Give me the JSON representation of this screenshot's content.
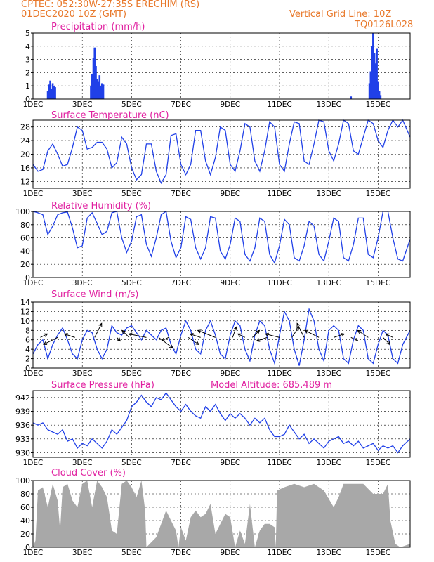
{
  "header": {
    "station": "CPTEC:   052:30W-27:35S   ERECHIM (RS)",
    "run": "01DEC2020 10Z (GMT)",
    "grid": "Vertical Grid Line: 10Z",
    "model": "TQ0126L028",
    "altitude": "Model Altitude: 685.489 m"
  },
  "colors": {
    "header": "#e8782a",
    "title": "#e020a0",
    "line": "#2040e8",
    "cloud": "#a8a8a8"
  },
  "x_ticks": [
    "1DEC",
    "3DEC",
    "5DEC",
    "7DEC",
    "9DEC",
    "11DEC",
    "13DEC",
    "15DEC"
  ],
  "chart_data": [
    {
      "id": "precip",
      "type": "bar",
      "title": "Precipitation (mm/h)",
      "ylim": [
        0,
        5
      ],
      "yticks": [
        0,
        1,
        2,
        3,
        4,
        5
      ],
      "x_unit": "day of December (1 = 01DEC)",
      "xlim": [
        1,
        16.3
      ],
      "x": [
        1.6,
        1.65,
        1.7,
        1.75,
        1.8,
        1.85,
        1.9,
        3.35,
        3.4,
        3.45,
        3.5,
        3.55,
        3.6,
        3.65,
        3.7,
        3.75,
        3.8,
        3.85,
        13.9,
        14.65,
        14.7,
        14.75,
        14.8,
        14.85,
        14.9,
        14.95,
        15.0,
        15.05,
        15.1
      ],
      "values": [
        0.6,
        1.1,
        1.4,
        0.8,
        1.2,
        1.0,
        0.9,
        1.0,
        1.9,
        3.1,
        3.9,
        2.5,
        1.5,
        1.3,
        1.8,
        1.0,
        1.2,
        1.1,
        0.2,
        1.2,
        2.1,
        4.0,
        5.0,
        3.5,
        2.7,
        3.8,
        1.3,
        0.6,
        0.3
      ]
    },
    {
      "id": "temp",
      "type": "line",
      "title": "Surface Temperature (nC)",
      "ylim": [
        10,
        30
      ],
      "yticks": [
        12,
        16,
        20,
        24,
        28
      ],
      "xlim": [
        1,
        16.3
      ],
      "x": [
        1,
        1.2,
        1.4,
        1.6,
        1.8,
        2.0,
        2.2,
        2.4,
        2.6,
        2.8,
        3.0,
        3.2,
        3.4,
        3.6,
        3.8,
        4.0,
        4.2,
        4.4,
        4.6,
        4.8,
        5.0,
        5.2,
        5.4,
        5.6,
        5.8,
        6.0,
        6.2,
        6.4,
        6.6,
        6.8,
        7.0,
        7.2,
        7.4,
        7.6,
        7.8,
        8.0,
        8.2,
        8.4,
        8.6,
        8.8,
        9.0,
        9.2,
        9.4,
        9.6,
        9.8,
        10.0,
        10.2,
        10.4,
        10.6,
        10.8,
        11.0,
        11.2,
        11.4,
        11.6,
        11.8,
        12.0,
        12.2,
        12.4,
        12.6,
        12.8,
        13.0,
        13.2,
        13.4,
        13.6,
        13.8,
        14.0,
        14.2,
        14.4,
        14.6,
        14.8,
        15.0,
        15.2,
        15.4,
        15.6,
        15.8,
        16.0,
        16.3
      ],
      "values": [
        17,
        15,
        15.5,
        21,
        23,
        20,
        16.5,
        17,
        22,
        28,
        27,
        21.5,
        22,
        23.5,
        23.5,
        21.5,
        16,
        17.5,
        25,
        23,
        16,
        12.5,
        14,
        23,
        23,
        15,
        11.5,
        14,
        25.5,
        26,
        17,
        14,
        17,
        27,
        27,
        18,
        14,
        19,
        28,
        27,
        17,
        15,
        21,
        29,
        28,
        18,
        15,
        21,
        29.5,
        28,
        17,
        15,
        23,
        29.5,
        29,
        18,
        17,
        23,
        30,
        29.5,
        21,
        18,
        23,
        30,
        29,
        21,
        20,
        25,
        30,
        29,
        24,
        22,
        27,
        30,
        28,
        30,
        25
      ]
    },
    {
      "id": "rh",
      "type": "line",
      "title": "Relative Humidity (%)",
      "ylim": [
        0,
        100
      ],
      "yticks": [
        0,
        20,
        40,
        60,
        80,
        100
      ],
      "xlim": [
        1,
        16.3
      ],
      "x": [
        1,
        1.2,
        1.4,
        1.6,
        1.8,
        2.0,
        2.2,
        2.4,
        2.6,
        2.8,
        3.0,
        3.2,
        3.4,
        3.6,
        3.8,
        4.0,
        4.2,
        4.4,
        4.6,
        4.8,
        5.0,
        5.2,
        5.4,
        5.6,
        5.8,
        6.0,
        6.2,
        6.4,
        6.6,
        6.8,
        7.0,
        7.2,
        7.4,
        7.6,
        7.8,
        8.0,
        8.2,
        8.4,
        8.6,
        8.8,
        9.0,
        9.2,
        9.4,
        9.6,
        9.8,
        10.0,
        10.2,
        10.4,
        10.6,
        10.8,
        11.0,
        11.2,
        11.4,
        11.6,
        11.8,
        12.0,
        12.2,
        12.4,
        12.6,
        12.8,
        13.0,
        13.2,
        13.4,
        13.6,
        13.8,
        14.0,
        14.2,
        14.4,
        14.6,
        14.8,
        15.0,
        15.2,
        15.4,
        15.6,
        15.8,
        16.0,
        16.3
      ],
      "values": [
        100,
        98,
        95,
        65,
        78,
        95,
        98,
        99,
        75,
        45,
        48,
        90,
        98,
        82,
        65,
        70,
        98,
        100,
        60,
        38,
        55,
        92,
        95,
        50,
        32,
        60,
        95,
        100,
        55,
        30,
        45,
        92,
        88,
        45,
        28,
        45,
        92,
        90,
        40,
        28,
        50,
        90,
        85,
        35,
        25,
        45,
        90,
        85,
        35,
        22,
        48,
        88,
        80,
        30,
        25,
        48,
        85,
        78,
        35,
        25,
        55,
        90,
        85,
        30,
        25,
        50,
        90,
        90,
        35,
        30,
        60,
        100,
        100,
        60,
        28,
        25,
        58
      ]
    },
    {
      "id": "wind",
      "type": "line",
      "title": "Surface Wind (m/s)",
      "ylim": [
        0,
        14
      ],
      "yticks": [
        0,
        2,
        4,
        6,
        8,
        10,
        12,
        14
      ],
      "xlim": [
        1,
        16.3
      ],
      "x": [
        1,
        1.2,
        1.4,
        1.6,
        1.8,
        2.0,
        2.2,
        2.4,
        2.6,
        2.8,
        3.0,
        3.2,
        3.4,
        3.6,
        3.8,
        4.0,
        4.2,
        4.4,
        4.6,
        4.8,
        5.0,
        5.2,
        5.4,
        5.6,
        5.8,
        6.0,
        6.2,
        6.4,
        6.6,
        6.8,
        7.0,
        7.2,
        7.4,
        7.6,
        7.8,
        8.0,
        8.2,
        8.4,
        8.6,
        8.8,
        9.0,
        9.2,
        9.4,
        9.6,
        9.8,
        10.0,
        10.2,
        10.4,
        10.6,
        10.8,
        11.0,
        11.2,
        11.4,
        11.6,
        11.8,
        12.0,
        12.2,
        12.4,
        12.6,
        12.8,
        13.0,
        13.2,
        13.4,
        13.6,
        13.8,
        14.0,
        14.2,
        14.4,
        14.6,
        14.8,
        15.0,
        15.2,
        15.4,
        15.6,
        15.8,
        16.0,
        16.3
      ],
      "values": [
        3,
        5,
        6,
        2,
        5,
        7,
        8.5,
        6,
        3,
        2,
        6,
        8,
        7.5,
        4,
        2,
        4,
        9,
        7.5,
        7,
        8.5,
        9,
        7.5,
        6,
        8,
        7,
        6,
        8,
        8.5,
        5,
        3,
        7,
        10,
        8,
        4,
        3,
        8,
        10,
        7,
        3,
        2,
        7,
        10,
        9,
        4,
        1.5,
        7,
        10,
        9,
        4,
        1,
        7,
        12,
        10,
        4,
        0.5,
        6,
        12.5,
        10,
        4,
        1.5,
        8,
        9,
        8,
        2,
        1,
        6,
        9,
        8,
        2,
        1,
        5,
        8,
        7,
        2,
        1,
        5,
        8
      ]
    },
    {
      "id": "pres",
      "type": "line",
      "title": "Surface Pressure (hPa)",
      "ylim": [
        929,
        943.5
      ],
      "yticks": [
        930,
        933,
        936,
        939,
        942
      ],
      "xlim": [
        1,
        16.3
      ],
      "x": [
        1,
        1.2,
        1.4,
        1.6,
        1.8,
        2.0,
        2.2,
        2.4,
        2.6,
        2.8,
        3.0,
        3.2,
        3.4,
        3.6,
        3.8,
        4.0,
        4.2,
        4.4,
        4.6,
        4.8,
        5.0,
        5.2,
        5.4,
        5.6,
        5.8,
        6.0,
        6.2,
        6.4,
        6.6,
        6.8,
        7.0,
        7.2,
        7.4,
        7.6,
        7.8,
        8.0,
        8.2,
        8.4,
        8.6,
        8.8,
        9.0,
        9.2,
        9.4,
        9.6,
        9.8,
        10.0,
        10.2,
        10.4,
        10.6,
        10.8,
        11.0,
        11.2,
        11.4,
        11.6,
        11.8,
        12.0,
        12.2,
        12.4,
        12.6,
        12.8,
        13.0,
        13.2,
        13.4,
        13.6,
        13.8,
        14.0,
        14.2,
        14.4,
        14.6,
        14.8,
        15.0,
        15.2,
        15.4,
        15.6,
        15.8,
        16.0,
        16.3
      ],
      "values": [
        936.5,
        936,
        936.5,
        935,
        934.5,
        934,
        935,
        932.5,
        933,
        931,
        932,
        931.5,
        933,
        932,
        931,
        932.5,
        935,
        934,
        935.5,
        937,
        940,
        941,
        942.5,
        941,
        940,
        942,
        941.5,
        943,
        941.5,
        940,
        939,
        940.5,
        939,
        938,
        937.5,
        940,
        939,
        940.5,
        938.5,
        937,
        938.5,
        937.5,
        938.5,
        937.5,
        936,
        937.5,
        936.5,
        937.5,
        935,
        933.5,
        933.5,
        934,
        936,
        934.5,
        933,
        934,
        932,
        933,
        932,
        931,
        932.5,
        933,
        933.5,
        932,
        932.5,
        931.5,
        932.5,
        931,
        931.5,
        932,
        930.5,
        931.5,
        931,
        931.5,
        930,
        931.5,
        933
      ]
    },
    {
      "id": "cloud",
      "type": "area",
      "title": "Cloud Cover (%)",
      "ylim": [
        0,
        100
      ],
      "yticks": [
        0,
        20,
        40,
        60,
        80,
        100
      ],
      "xlim": [
        1,
        16.3
      ],
      "x": [
        1,
        1.1,
        1.2,
        1.4,
        1.6,
        1.8,
        2.0,
        2.1,
        2.2,
        2.4,
        2.6,
        2.8,
        3.0,
        3.2,
        3.4,
        3.6,
        3.8,
        4.0,
        4.2,
        4.4,
        4.6,
        4.8,
        5.0,
        5.2,
        5.4,
        5.55,
        5.6,
        6.0,
        6.2,
        6.4,
        6.6,
        6.8,
        6.9,
        7.0,
        7.2,
        7.4,
        7.6,
        7.8,
        8.0,
        8.2,
        8.4,
        8.6,
        8.8,
        9.0,
        9.2,
        9.4,
        9.6,
        9.8,
        10.0,
        10.2,
        10.4,
        10.6,
        10.8,
        10.85,
        10.9,
        11.2,
        11.6,
        12.0,
        12.4,
        12.8,
        13.2,
        13.4,
        13.6,
        14.0,
        14.4,
        14.8,
        15.2,
        15.4,
        15.5,
        15.7,
        15.9,
        16.3
      ],
      "values": [
        0,
        10,
        85,
        90,
        60,
        95,
        70,
        25,
        90,
        95,
        70,
        60,
        95,
        100,
        60,
        100,
        90,
        75,
        25,
        20,
        95,
        100,
        90,
        75,
        100,
        55,
        0,
        15,
        35,
        55,
        40,
        25,
        0,
        30,
        10,
        45,
        55,
        45,
        50,
        65,
        20,
        35,
        50,
        45,
        0,
        25,
        5,
        65,
        0,
        25,
        35,
        35,
        30,
        0,
        85,
        90,
        95,
        90,
        95,
        85,
        60,
        75,
        95,
        95,
        95,
        80,
        80,
        95,
        40,
        5,
        0,
        5
      ]
    },
    {
      "id": "wind_arrows",
      "type": "vector",
      "title": "wind direction arrows (u, v in m/s)",
      "x": [
        1.3,
        2.0,
        2.7,
        3.5,
        4.4,
        4.9,
        5.6,
        6.1,
        6.5,
        7.3,
        7.8,
        8.4,
        9.1,
        9.6,
        9.9,
        10.5,
        11.0,
        11.5,
        12.0,
        12.6,
        13.2,
        13.9,
        14.6,
        15.2,
        15.6
      ],
      "u": [
        1,
        -2,
        -1.5,
        1,
        0.5,
        -1,
        -2.5,
        2,
        -1,
        1.5,
        -1.5,
        -2.5,
        0.5,
        -1,
        1,
        -1.5,
        -2,
        1,
        -1,
        -2,
        1.5,
        1,
        -1.5,
        1,
        -1
      ],
      "v": [
        0.5,
        -1,
        0.5,
        2,
        -0.5,
        1,
        0.5,
        -1.5,
        -0.5,
        -1,
        0.5,
        1,
        1.5,
        0.5,
        1,
        -0.5,
        0.5,
        1.5,
        2,
        1,
        0.5,
        -0.5,
        1,
        -1,
        0.5
      ]
    }
  ]
}
